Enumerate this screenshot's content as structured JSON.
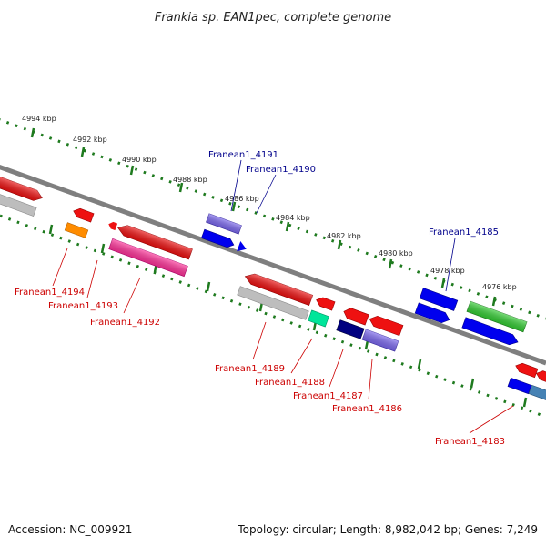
{
  "title": "Frankia sp. EAN1pec, complete genome",
  "footer": {
    "accession": "Accession: NC_009921",
    "summary": "Topology: circular; Length: 8,982,042 bp; Genes: 7,249"
  },
  "colors": {
    "forward_label": "#00008b",
    "reverse_label": "#cc0000",
    "tick": "#1e7a1e",
    "backbone": "#7f7f7f"
  },
  "kbp_labels": [
    "4994 kbp",
    "4992 kbp",
    "4990 kbp",
    "4988 kbp",
    "4986 kbp",
    "4984 kbp",
    "4982 kbp",
    "4980 kbp",
    "4978 kbp",
    "4976 kbp"
  ],
  "gene_labels": {
    "g4191": "Franean1_4191",
    "g4190": "Franean1_4190",
    "g4185": "Franean1_4185",
    "g4194": "Franean1_4194",
    "g4193": "Franean1_4193",
    "g4192": "Franean1_4192",
    "g4189": "Franean1_4189",
    "g4188": "Franean1_4188",
    "g4187": "Franean1_4187",
    "g4186": "Franean1_4186",
    "g4183": "Franean1_4183"
  }
}
